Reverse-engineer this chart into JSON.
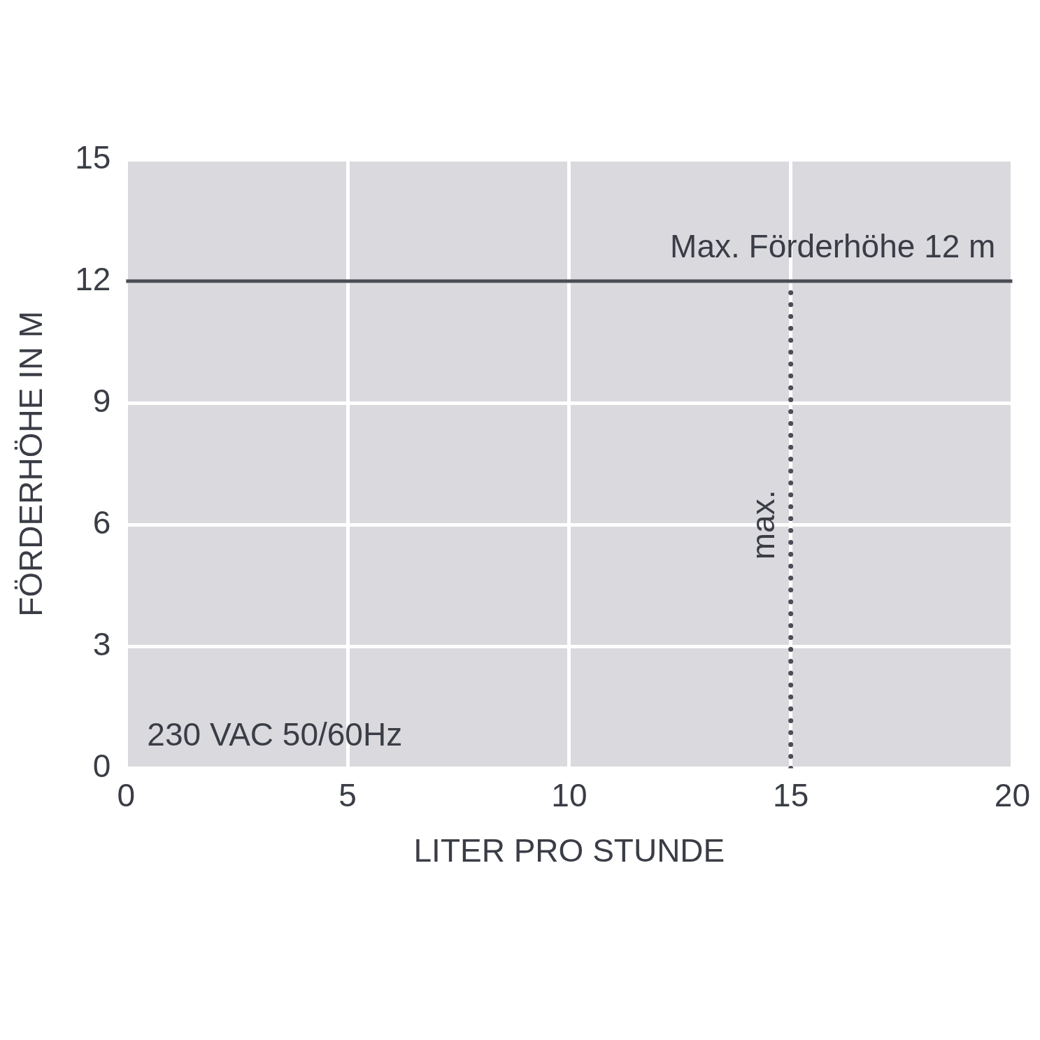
{
  "chart_data": {
    "type": "line",
    "xlabel": "LITER PRO STUNDE",
    "ylabel": "FÖRDERHÖHE IN M",
    "xlim": [
      0,
      20
    ],
    "xticks": [
      0,
      5,
      10,
      15,
      20
    ],
    "ylim": [
      0,
      15
    ],
    "yticks": [
      0,
      3,
      6,
      9,
      12,
      15
    ],
    "grid": true,
    "legend": false,
    "series": [
      {
        "x": [
          15,
          15
        ],
        "values": [
          0,
          12
        ],
        "color": "#4a4d55",
        "line_style": "dotted",
        "marker": "none"
      }
    ],
    "ref_lines": [
      {
        "axis": "y",
        "value": 12,
        "label": "Max. Förderhöhe 12 m",
        "color": "#4a4d55",
        "line_style": "solid"
      }
    ],
    "annotations": [
      "230 VAC 50/60Hz",
      {
        "text": "max.",
        "x": 15,
        "y": 6
      }
    ]
  }
}
